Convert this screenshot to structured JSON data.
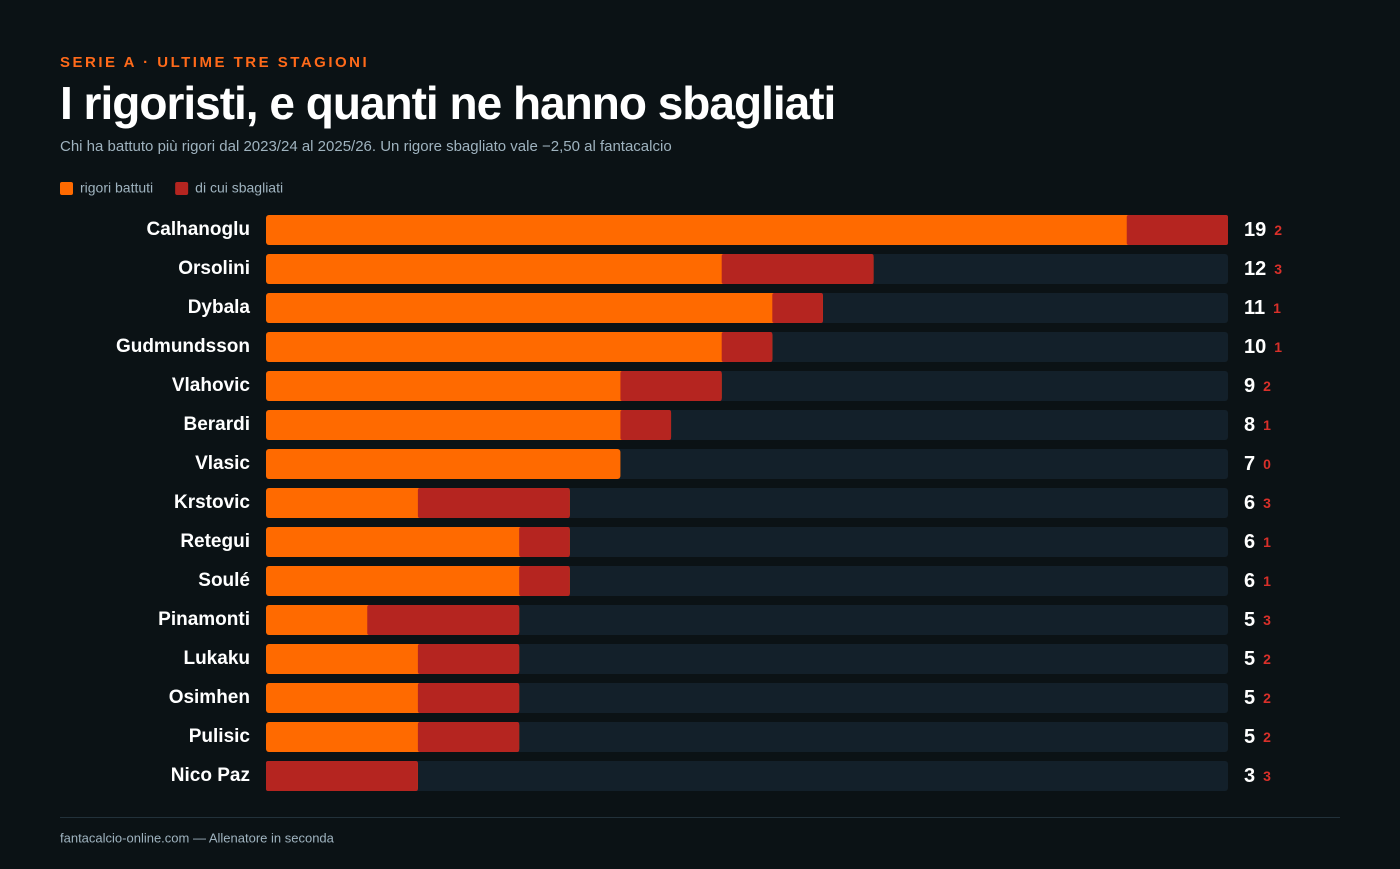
{
  "chart_data": {
    "type": "bar",
    "orientation": "horizontal",
    "kicker": "SERIE A · ULTIME TRE STAGIONI",
    "title": "I rigoristi, e quanti ne hanno sbagliati",
    "subtitle": "Chi ha battuto più rigori dal 2023/24 al 2025/26. Un rigore sbagliato vale −2,50 al fantacalcio",
    "categories": [
      "Calhanoglu",
      "Orsolini",
      "Dybala",
      "Gudmundsson",
      "Vlahovic",
      "Berardi",
      "Vlasic",
      "Krstovic",
      "Retegui",
      "Soulé",
      "Pinamonti",
      "Lukaku",
      "Osimhen",
      "Pulisic",
      "Nico Paz"
    ],
    "series": [
      {
        "name": "rigori battuti",
        "color": "#ff6a00",
        "values": [
          19,
          12,
          11,
          10,
          9,
          8,
          7,
          6,
          6,
          6,
          5,
          5,
          5,
          5,
          3
        ]
      },
      {
        "name": "di cui sbagliati",
        "color": "#b52520",
        "values": [
          2,
          3,
          1,
          1,
          2,
          1,
          0,
          3,
          1,
          1,
          3,
          2,
          2,
          2,
          3
        ]
      }
    ],
    "xlim": [
      0,
      19
    ],
    "source": "fantacalcio-online.com — Allenatore in seconda"
  }
}
